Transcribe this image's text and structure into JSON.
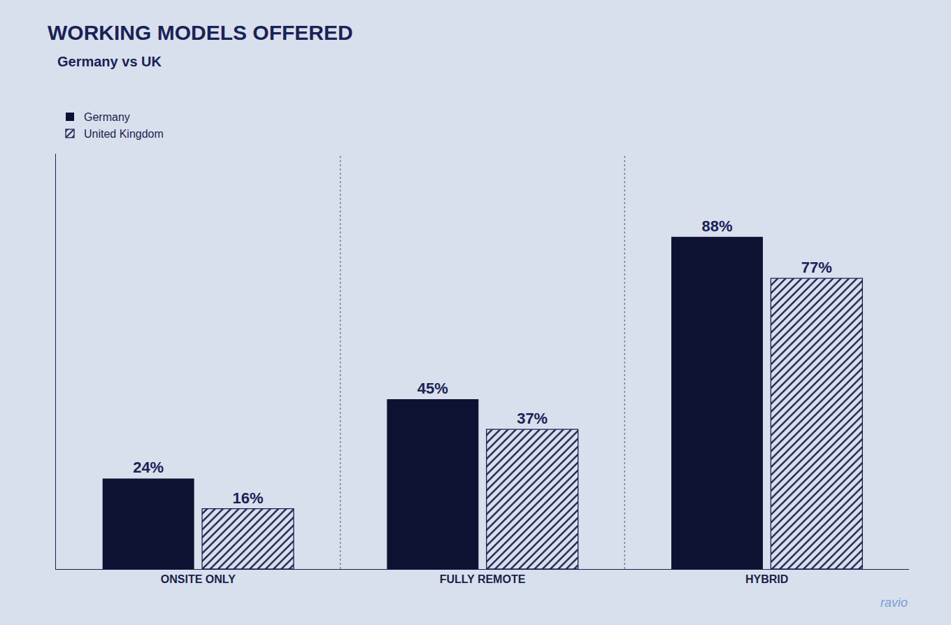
{
  "chart_data": {
    "type": "bar",
    "title": "WORKING MODELS OFFERED",
    "subtitle": "Germany vs UK",
    "categories": [
      "ONSITE ONLY",
      "FULLY REMOTE",
      "HYBRID"
    ],
    "series": [
      {
        "name": "Germany",
        "color": "#0d1233",
        "values": [
          24,
          45,
          88
        ],
        "value_labels": [
          "24%",
          "45%",
          "88%"
        ]
      },
      {
        "name": "United Kingdom",
        "color": "#cdd5e8",
        "values": [
          16,
          37,
          77
        ],
        "value_labels": [
          "16%",
          "37%",
          "77%"
        ]
      }
    ],
    "ylim": [
      0,
      110
    ],
    "data_labels": true,
    "tick_labels": "x",
    "grid": false,
    "legend": "top left",
    "annotations": [
      "ravio"
    ]
  }
}
